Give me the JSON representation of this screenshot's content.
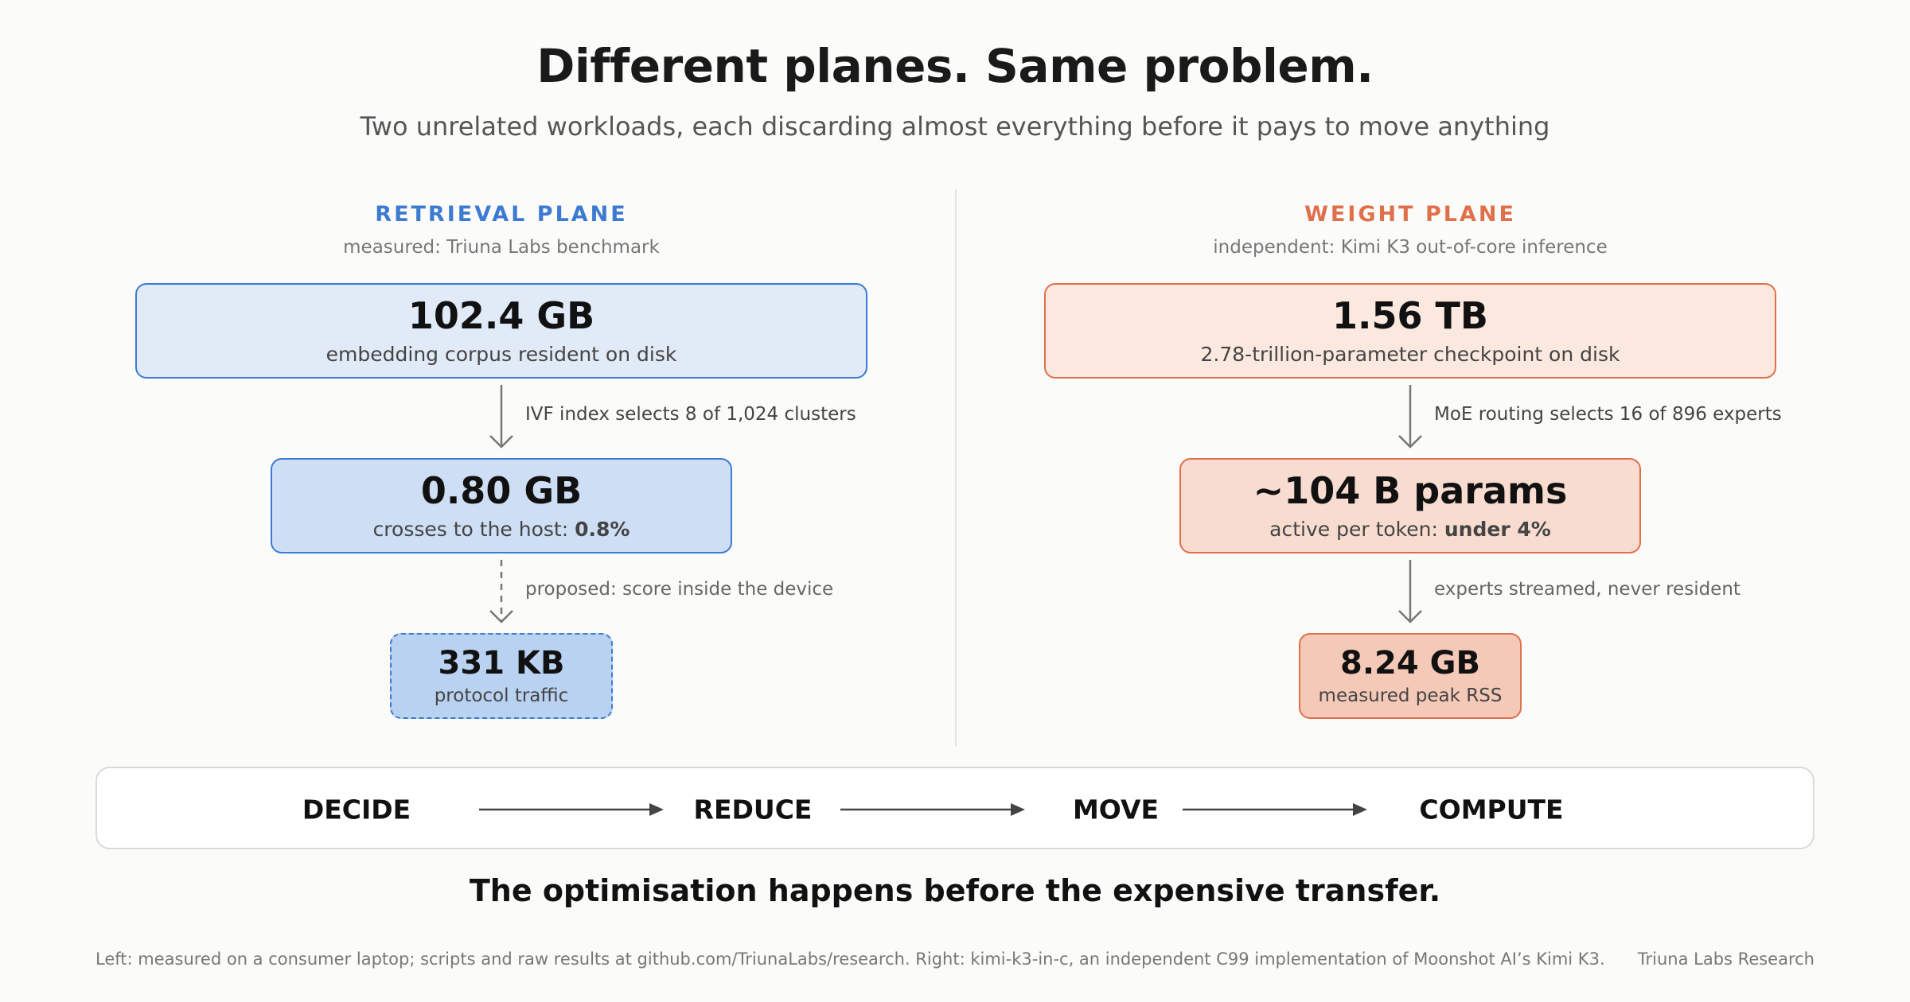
{
  "header": {
    "title": "Different planes. Same problem.",
    "subtitle": "Two unrelated workloads, each discarding almost everything before it pays to move anything"
  },
  "colors": {
    "retrieval_accent": "#3d7ad1",
    "weight_accent": "#e0704b"
  },
  "retrieval": {
    "heading": "RETRIEVAL PLANE",
    "source": "measured: Triuna Labs benchmark",
    "box1": {
      "value": "102.4 GB",
      "caption": "embedding corpus resident on disk"
    },
    "step1": "IVF index selects 8 of 1,024 clusters",
    "box2": {
      "value": "0.80 GB",
      "caption_prefix": "crosses to the host: ",
      "caption_bold": "0.8%"
    },
    "step2": "proposed: score inside the device",
    "box3": {
      "value": "331 KB",
      "caption": "protocol traffic"
    }
  },
  "weight": {
    "heading": "WEIGHT PLANE",
    "source": "independent: Kimi K3 out-of-core inference",
    "box1": {
      "value": "1.56 TB",
      "caption": "2.78-trillion-parameter checkpoint on disk"
    },
    "step1": "MoE routing selects 16 of 896 experts",
    "box2": {
      "value": "~104 B params",
      "caption_prefix": "active per token: ",
      "caption_bold": "under 4%"
    },
    "step2": "experts streamed, never resident",
    "box3": {
      "value": "8.24 GB",
      "caption": "measured peak RSS"
    }
  },
  "flow": {
    "steps": [
      "DECIDE",
      "REDUCE",
      "MOVE",
      "COMPUTE"
    ]
  },
  "tagline": "The optimisation happens before the expensive transfer.",
  "footer": {
    "note": "Left: measured on a consumer laptop; scripts and raw results at github.com/TriunaLabs/research. Right: kimi-k3-in-c, an independent C99 implementation of Moonshot AI’s Kimi K3.",
    "brand": "Triuna Labs Research"
  }
}
